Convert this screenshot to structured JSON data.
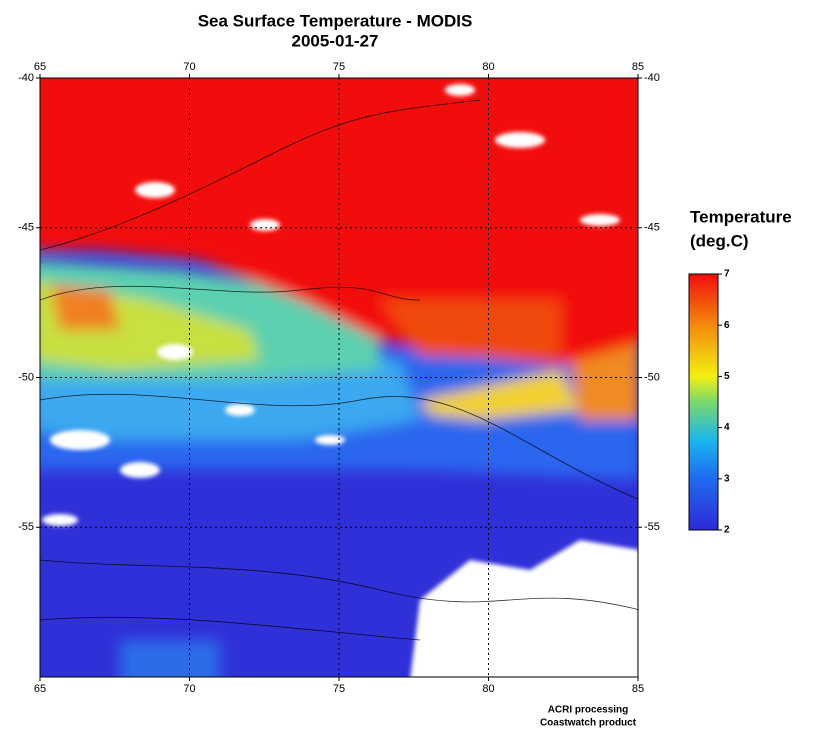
{
  "chart_data": {
    "type": "map",
    "title": "Sea Surface Temperature - MODIS",
    "subtitle": "2005-01-27",
    "xlim": [
      65,
      85
    ],
    "xticks": [
      65,
      70,
      75,
      80,
      85
    ],
    "ylim": [
      -60,
      -40
    ],
    "yticks": [
      -40,
      -45,
      -50,
      -55
    ],
    "grid": true,
    "colorbar": {
      "title": [
        "Temperature",
        "(deg.C)"
      ],
      "lim": [
        2,
        7
      ],
      "ticks": [
        2,
        3,
        4,
        5,
        6,
        7
      ]
    },
    "credits": [
      "ACRI processing",
      "Coastwatch product"
    ]
  }
}
